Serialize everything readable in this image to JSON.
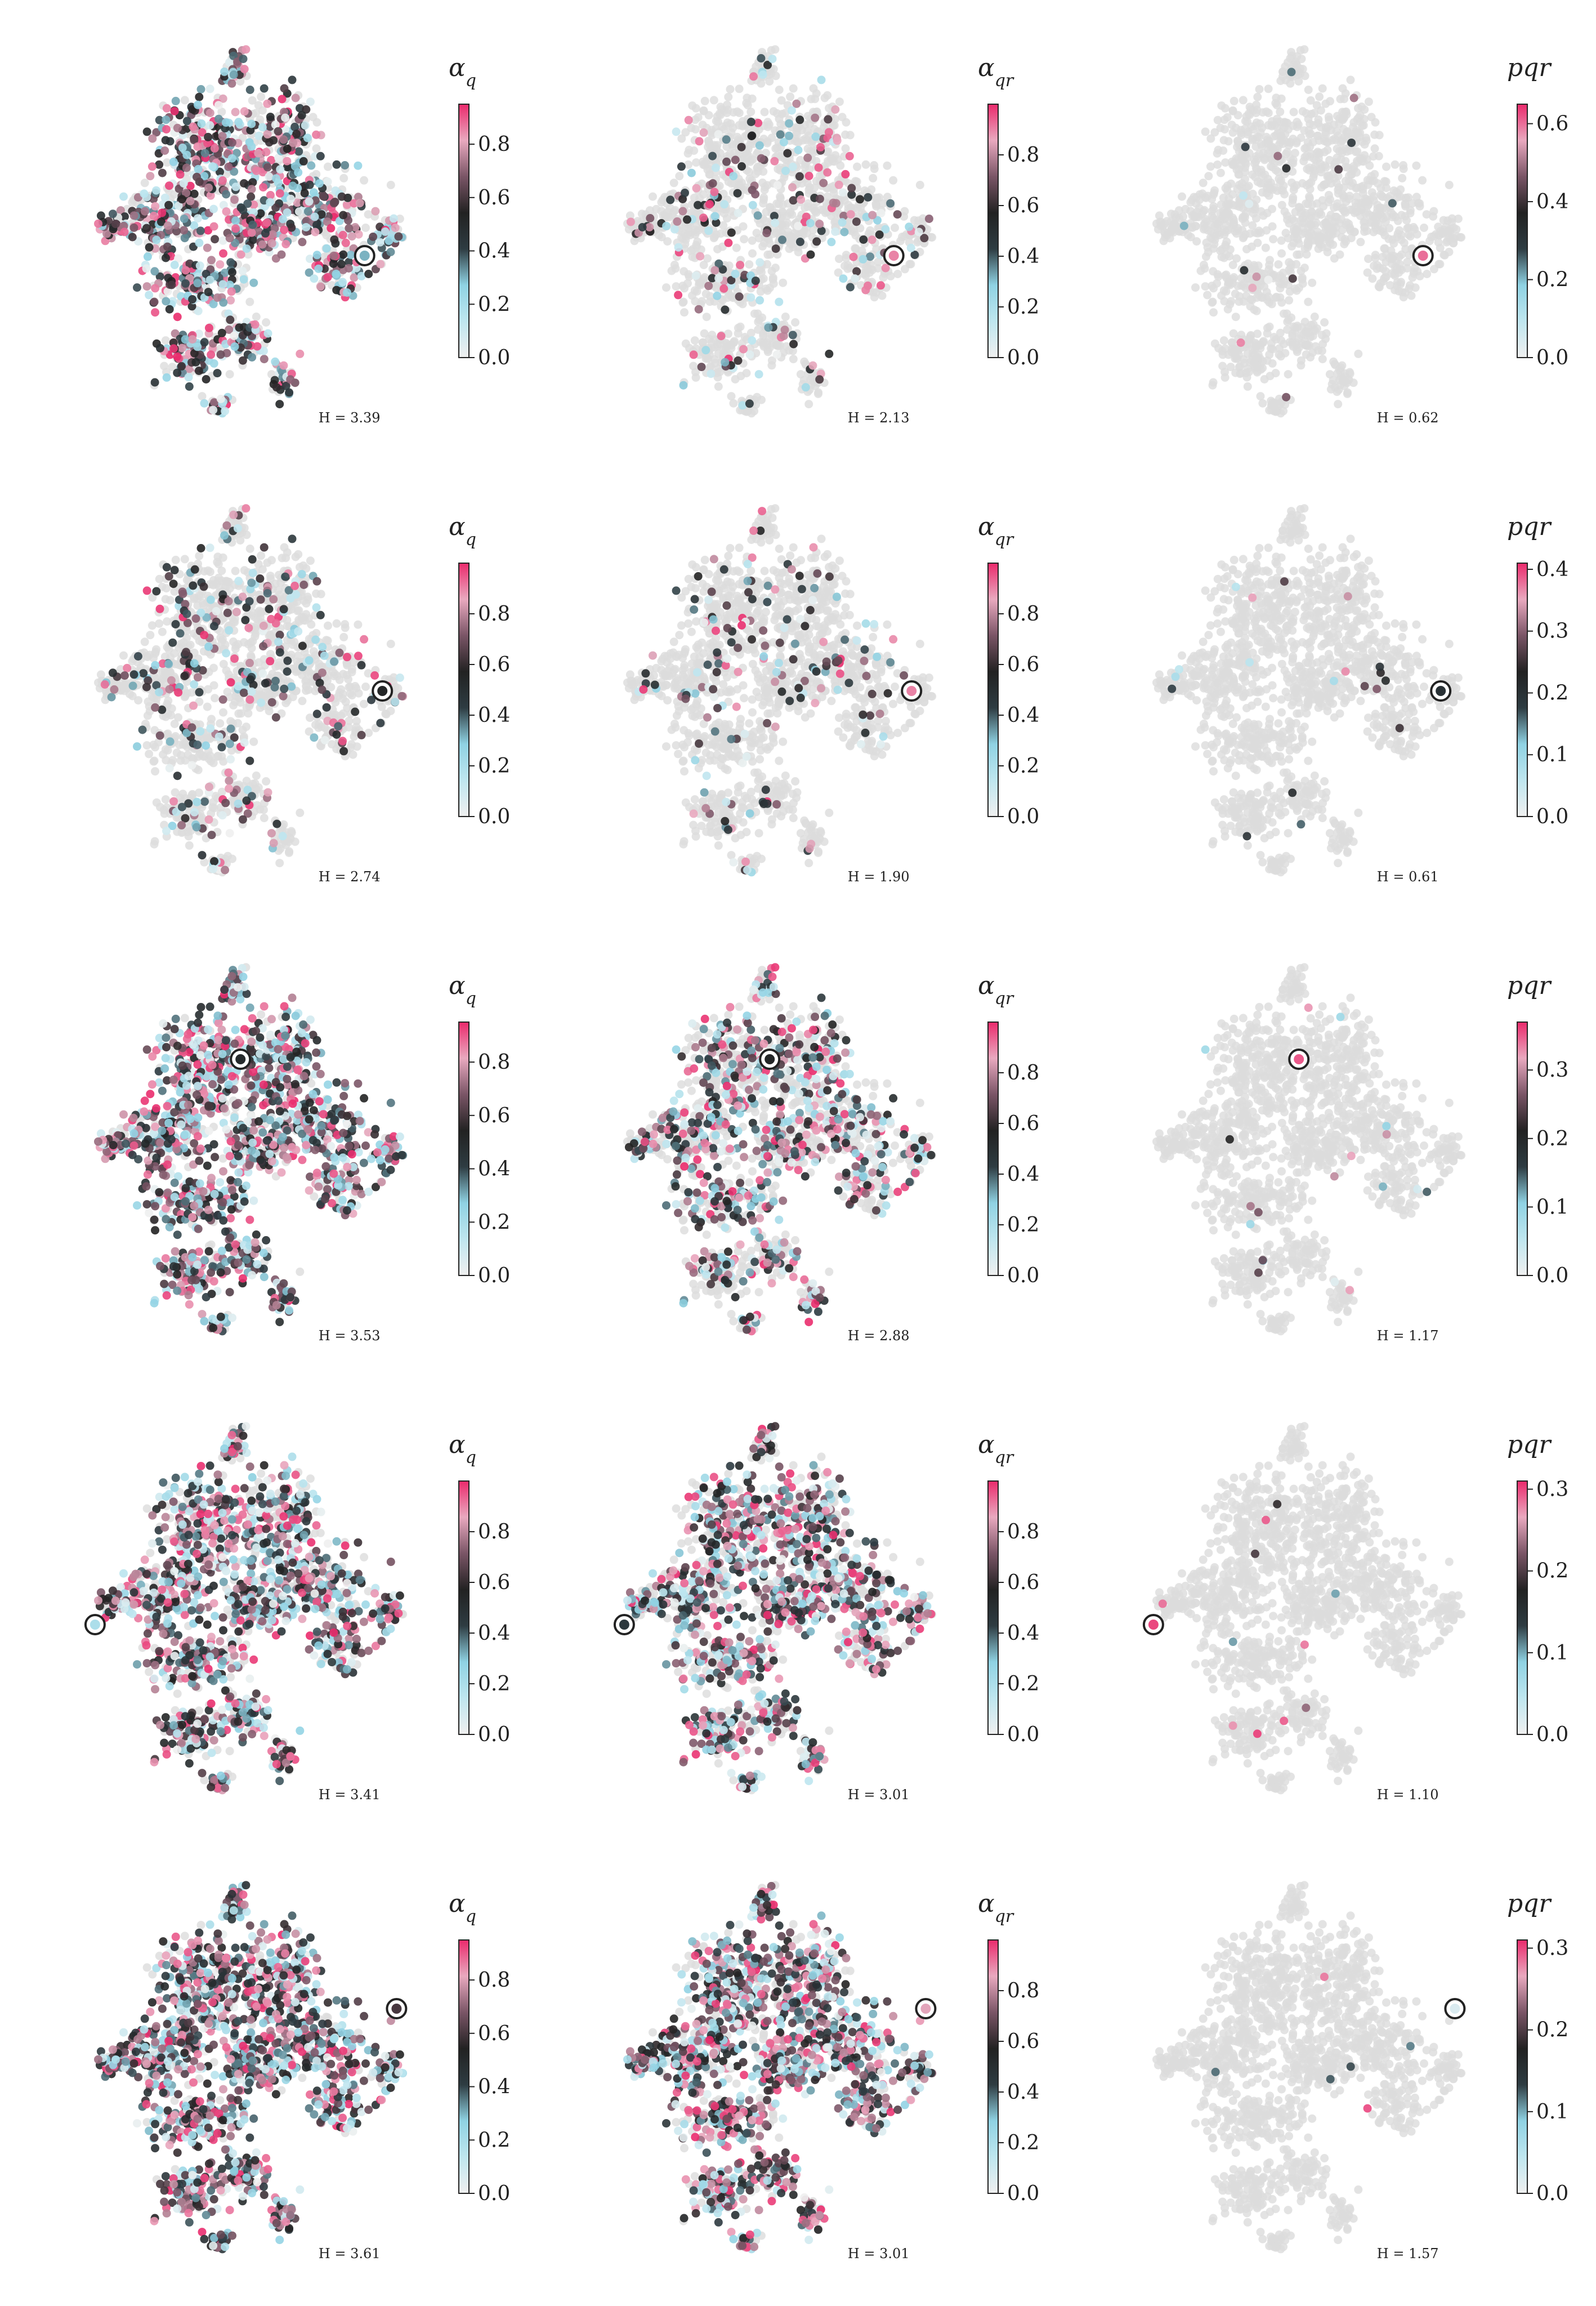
{
  "colorscale": {
    "stops": [
      "#f0f0f0",
      "#bfe6ef",
      "#8fd2e3",
      "#2e3c42",
      "#222222",
      "#7a5566",
      "#e9a9bf",
      "#ea2a6c"
    ],
    "background_point_color": "#dcdcdc",
    "marker_ring_color": "#222222"
  },
  "chart_data": [
    {
      "type": "scatter",
      "panel": "r1c1",
      "colorbar_label": "α_q",
      "colorbar_ticks": [
        "0.0",
        "0.2",
        "0.4",
        "0.6",
        "0.8"
      ],
      "cmax": 0.95,
      "entropy_label": "H = 3.39",
      "highlighted_point": [
        0.79,
        0.57
      ],
      "highlighted_value": 0.3,
      "coloured_fraction": 0.72,
      "seed": 11
    },
    {
      "type": "scatter",
      "panel": "r1c2",
      "colorbar_label": "α_qr",
      "colorbar_ticks": [
        "0.0",
        "0.2",
        "0.4",
        "0.6",
        "0.8"
      ],
      "cmax": 1.0,
      "entropy_label": "H = 2.13",
      "highlighted_point": [
        0.79,
        0.57
      ],
      "highlighted_value": 0.9,
      "coloured_fraction": 0.15,
      "seed": 12
    },
    {
      "type": "scatter",
      "panel": "r1c3",
      "colorbar_label": "pqr",
      "colorbar_ticks": [
        "0.0",
        "0.2",
        "0.4",
        "0.6"
      ],
      "cmax": 0.65,
      "entropy_label": "H = 0.62",
      "highlighted_point": [
        0.79,
        0.57
      ],
      "highlighted_value": 0.6,
      "coloured_fraction": 0.01,
      "seed": 13
    },
    {
      "type": "scatter",
      "panel": "r2c1",
      "colorbar_label": "α_q",
      "colorbar_ticks": [
        "0.0",
        "0.2",
        "0.4",
        "0.6",
        "0.8"
      ],
      "cmax": 1.0,
      "entropy_label": "H = 2.74",
      "highlighted_point": [
        0.84,
        0.51
      ],
      "highlighted_value": 0.55,
      "coloured_fraction": 0.22,
      "seed": 21
    },
    {
      "type": "scatter",
      "panel": "r2c2",
      "colorbar_label": "α_qr",
      "colorbar_ticks": [
        "0.0",
        "0.2",
        "0.4",
        "0.6",
        "0.8"
      ],
      "cmax": 1.0,
      "entropy_label": "H = 1.90",
      "highlighted_point": [
        0.84,
        0.51
      ],
      "highlighted_value": 0.9,
      "coloured_fraction": 0.1,
      "seed": 22
    },
    {
      "type": "scatter",
      "panel": "r2c3",
      "colorbar_label": "pqr",
      "colorbar_ticks": [
        "0.0",
        "0.1",
        "0.2",
        "0.3",
        "0.4"
      ],
      "cmax": 0.41,
      "entropy_label": "H = 0.61",
      "highlighted_point": [
        0.84,
        0.51
      ],
      "highlighted_value": 0.2,
      "coloured_fraction": 0.01,
      "seed": 23
    },
    {
      "type": "scatter",
      "panel": "r3c1",
      "colorbar_label": "α_q",
      "colorbar_ticks": [
        "0.0",
        "0.2",
        "0.4",
        "0.6",
        "0.8"
      ],
      "cmax": 0.95,
      "entropy_label": "H = 3.53",
      "highlighted_point": [
        0.44,
        0.28
      ],
      "highlighted_value": 0.5,
      "coloured_fraction": 0.85,
      "seed": 31
    },
    {
      "type": "scatter",
      "panel": "r3c2",
      "colorbar_label": "α_qr",
      "colorbar_ticks": [
        "0.0",
        "0.2",
        "0.4",
        "0.6",
        "0.8"
      ],
      "cmax": 1.0,
      "entropy_label": "H = 2.88",
      "highlighted_point": [
        0.44,
        0.28
      ],
      "highlighted_value": 0.55,
      "coloured_fraction": 0.5,
      "seed": 32
    },
    {
      "type": "scatter",
      "panel": "r3c3",
      "colorbar_label": "pqr",
      "colorbar_ticks": [
        "0.0",
        "0.1",
        "0.2",
        "0.3"
      ],
      "cmax": 0.37,
      "entropy_label": "H = 1.17",
      "highlighted_point": [
        0.44,
        0.28
      ],
      "highlighted_value": 0.35,
      "coloured_fraction": 0.01,
      "seed": 33
    },
    {
      "type": "scatter",
      "panel": "r4c1",
      "colorbar_label": "α_q",
      "colorbar_ticks": [
        "0.0",
        "0.2",
        "0.4",
        "0.6",
        "0.8"
      ],
      "cmax": 1.0,
      "entropy_label": "H = 3.41",
      "highlighted_point": [
        0.03,
        0.55
      ],
      "highlighted_value": 0.2,
      "coloured_fraction": 0.8,
      "seed": 41
    },
    {
      "type": "scatter",
      "panel": "r4c2",
      "colorbar_label": "α_qr",
      "colorbar_ticks": [
        "0.0",
        "0.2",
        "0.4",
        "0.6",
        "0.8"
      ],
      "cmax": 1.0,
      "entropy_label": "H = 3.01",
      "highlighted_point": [
        0.03,
        0.55
      ],
      "highlighted_value": 0.45,
      "coloured_fraction": 0.7,
      "seed": 42
    },
    {
      "type": "scatter",
      "panel": "r4c3",
      "colorbar_label": "pqr",
      "colorbar_ticks": [
        "0.0",
        "0.1",
        "0.2",
        "0.3"
      ],
      "cmax": 0.31,
      "entropy_label": "H = 1.10",
      "highlighted_point": [
        0.03,
        0.55
      ],
      "highlighted_value": 0.3,
      "coloured_fraction": 0.01,
      "seed": 43
    },
    {
      "type": "scatter",
      "panel": "r5c1",
      "colorbar_label": "α_q",
      "colorbar_ticks": [
        "0.0",
        "0.2",
        "0.4",
        "0.6",
        "0.8"
      ],
      "cmax": 0.95,
      "entropy_label": "H = 3.61",
      "highlighted_point": [
        0.88,
        0.36
      ],
      "highlighted_value": 0.6,
      "coloured_fraction": 0.92,
      "seed": 51
    },
    {
      "type": "scatter",
      "panel": "r5c2",
      "colorbar_label": "α_qr",
      "colorbar_ticks": [
        "0.0",
        "0.2",
        "0.4",
        "0.6",
        "0.8"
      ],
      "cmax": 1.0,
      "entropy_label": "H = 3.01",
      "highlighted_point": [
        0.88,
        0.36
      ],
      "highlighted_value": 0.85,
      "coloured_fraction": 0.8,
      "seed": 52
    },
    {
      "type": "scatter",
      "panel": "r5c3",
      "colorbar_label": "pqr",
      "colorbar_ticks": [
        "0.0",
        "0.1",
        "0.2",
        "0.3"
      ],
      "cmax": 0.31,
      "entropy_label": "H = 1.57",
      "highlighted_point": [
        0.88,
        0.36
      ],
      "highlighted_value": 0.02,
      "coloured_fraction": 0.01,
      "seed": 53
    }
  ]
}
